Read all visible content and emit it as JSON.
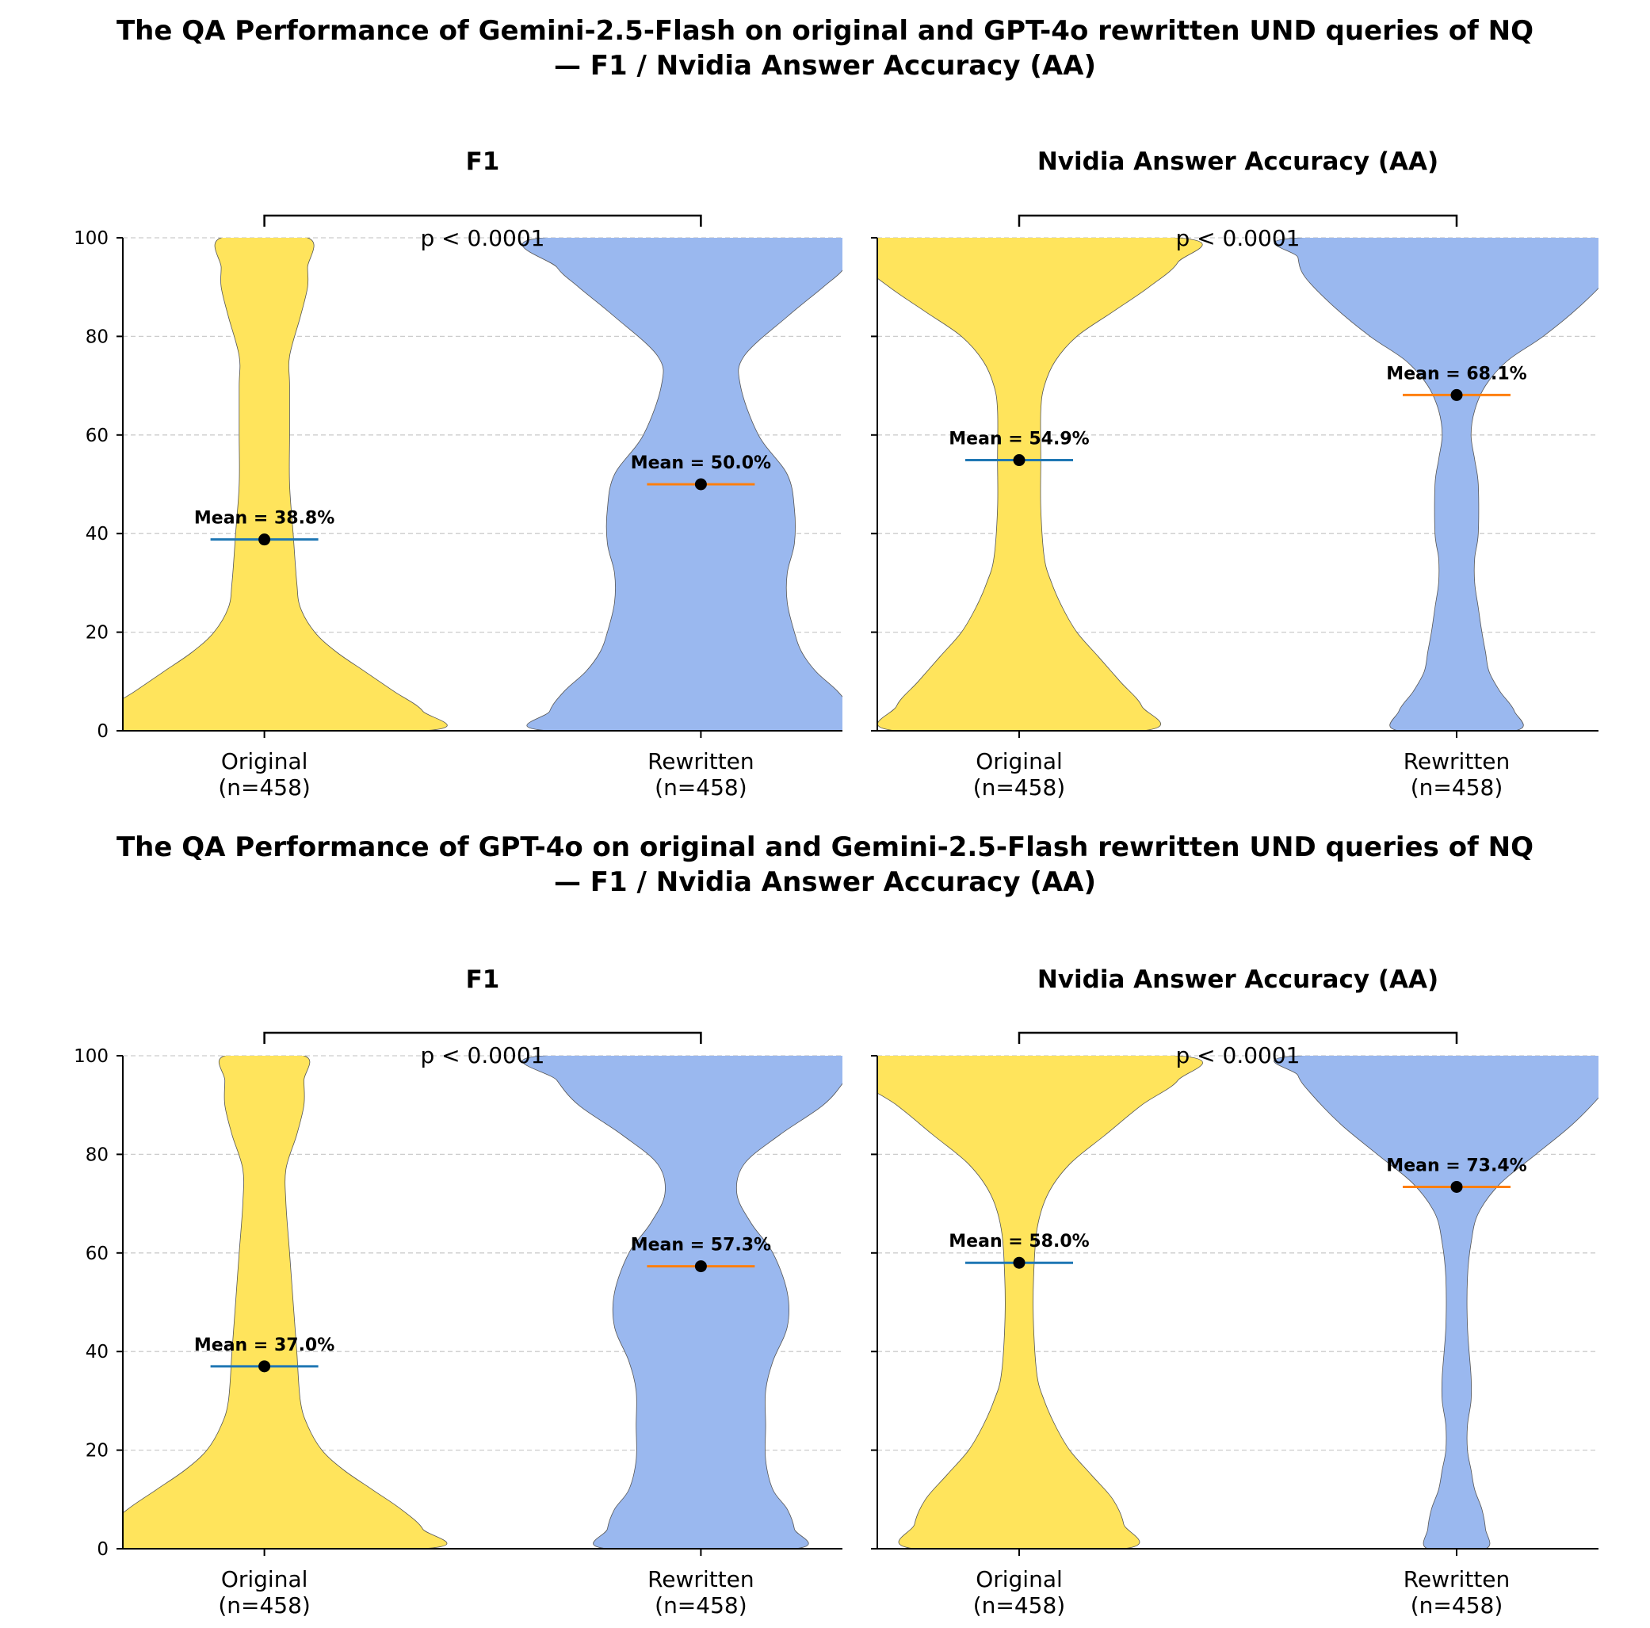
{
  "figure_titles": [
    {
      "line1": "The QA Performance of Gemini-2.5-Flash on original and GPT-4o rewritten UND queries of NQ",
      "line2": "— F1 / Nvidia Answer Accuracy (AA)"
    },
    {
      "line1": "The QA Performance of GPT-4o on original and Gemini-2.5-Flash rewritten UND queries of NQ",
      "line2": "— F1 / Nvidia Answer Accuracy (AA)"
    }
  ],
  "colors": {
    "original_fill": "#FFE45C",
    "rewritten_fill": "#9AB8EF",
    "original_mean_line": "#1F77B4",
    "rewritten_mean_line": "#FF7F0E",
    "mean_dot": "#000000",
    "grid": "#CCCCCC"
  },
  "chart_data": [
    {
      "type": "violin",
      "title": "F1",
      "ylim": [
        0,
        100
      ],
      "yticks": [
        0,
        20,
        40,
        60,
        80,
        100
      ],
      "grid": true,
      "categories": [
        "Original",
        "Rewritten"
      ],
      "category_counts": [
        "(n=458)",
        "(n=458)"
      ],
      "means": [
        38.8,
        50.0
      ],
      "mean_labels": [
        "Mean = 38.8%",
        "Mean = 50.0%"
      ],
      "significance": "p < 0.0001",
      "violin_halfwidths": [
        [
          [
            0,
            22
          ],
          [
            4,
            22
          ],
          [
            8,
            18
          ],
          [
            12,
            14
          ],
          [
            16,
            10
          ],
          [
            20,
            7
          ],
          [
            25,
            5
          ],
          [
            30,
            4.5
          ],
          [
            40,
            4
          ],
          [
            50,
            3.5
          ],
          [
            60,
            3.5
          ],
          [
            70,
            3.5
          ],
          [
            76,
            3.5
          ],
          [
            84,
            5
          ],
          [
            90,
            6
          ],
          [
            94,
            6
          ],
          [
            100,
            6
          ]
        ],
        [
          [
            0,
            21
          ],
          [
            4,
            21
          ],
          [
            8,
            19
          ],
          [
            12,
            16
          ],
          [
            16,
            14
          ],
          [
            20,
            13
          ],
          [
            26,
            12
          ],
          [
            32,
            12
          ],
          [
            38,
            13
          ],
          [
            45,
            13
          ],
          [
            52,
            12
          ],
          [
            60,
            8
          ],
          [
            70,
            5.5
          ],
          [
            76,
            6
          ],
          [
            84,
            12
          ],
          [
            90,
            17
          ],
          [
            94,
            20
          ],
          [
            100,
            22
          ]
        ]
      ]
    },
    {
      "type": "violin",
      "title": "Nvidia Answer Accuracy (AA)",
      "ylim": [
        0,
        100
      ],
      "yticks": [
        0,
        20,
        40,
        60,
        80,
        100
      ],
      "grid": true,
      "categories": [
        "Original",
        "Rewritten"
      ],
      "category_counts": [
        "(n=458)",
        "(n=458)"
      ],
      "means": [
        54.9,
        68.1
      ],
      "mean_labels": [
        "Mean = 54.9%",
        "Mean = 68.1%"
      ],
      "significance": "p < 0.0001",
      "violin_halfwidths": [
        [
          [
            0,
            17
          ],
          [
            5,
            17
          ],
          [
            10,
            14
          ],
          [
            15,
            11
          ],
          [
            20,
            8
          ],
          [
            25,
            6
          ],
          [
            30,
            4.5
          ],
          [
            35,
            3.5
          ],
          [
            45,
            3
          ],
          [
            55,
            3
          ],
          [
            65,
            3
          ],
          [
            70,
            3.5
          ],
          [
            75,
            5
          ],
          [
            80,
            8
          ],
          [
            85,
            13
          ],
          [
            90,
            18
          ],
          [
            95,
            22
          ],
          [
            100,
            22
          ]
        ],
        [
          [
            0,
            8
          ],
          [
            4,
            8
          ],
          [
            8,
            6
          ],
          [
            12,
            4.5
          ],
          [
            16,
            4
          ],
          [
            20,
            3.5
          ],
          [
            25,
            3
          ],
          [
            30,
            2.5
          ],
          [
            35,
            2.5
          ],
          [
            40,
            3
          ],
          [
            50,
            3
          ],
          [
            55,
            2.5
          ],
          [
            60,
            2
          ],
          [
            65,
            2.5
          ],
          [
            70,
            4
          ],
          [
            75,
            7
          ],
          [
            80,
            12
          ],
          [
            86,
            17
          ],
          [
            92,
            21
          ],
          [
            96,
            22
          ],
          [
            100,
            22
          ]
        ]
      ]
    },
    {
      "type": "violin",
      "title": "F1",
      "ylim": [
        0,
        100
      ],
      "yticks": [
        0,
        20,
        40,
        60,
        80,
        100
      ],
      "grid": true,
      "categories": [
        "Original",
        "Rewritten"
      ],
      "category_counts": [
        "(n=458)",
        "(n=458)"
      ],
      "means": [
        37.0,
        57.3
      ],
      "mean_labels": [
        "Mean = 37.0%",
        "Mean = 57.3%"
      ],
      "significance": "p < 0.0001",
      "violin_halfwidths": [
        [
          [
            0,
            22
          ],
          [
            4,
            22
          ],
          [
            8,
            19
          ],
          [
            12,
            15
          ],
          [
            16,
            11
          ],
          [
            20,
            8
          ],
          [
            25,
            6
          ],
          [
            30,
            5
          ],
          [
            40,
            4.5
          ],
          [
            50,
            4
          ],
          [
            60,
            3.5
          ],
          [
            70,
            3
          ],
          [
            77,
            3
          ],
          [
            84,
            4.5
          ],
          [
            90,
            5.5
          ],
          [
            95,
            5.5
          ],
          [
            100,
            5.5
          ]
        ],
        [
          [
            0,
            13
          ],
          [
            4,
            13
          ],
          [
            8,
            12
          ],
          [
            12,
            10
          ],
          [
            18,
            9
          ],
          [
            25,
            9
          ],
          [
            32,
            9
          ],
          [
            38,
            10
          ],
          [
            45,
            12
          ],
          [
            52,
            12
          ],
          [
            60,
            10
          ],
          [
            66,
            7
          ],
          [
            72,
            5
          ],
          [
            78,
            6
          ],
          [
            84,
            11
          ],
          [
            90,
            17
          ],
          [
            95,
            20
          ],
          [
            100,
            22
          ]
        ]
      ]
    },
    {
      "type": "violin",
      "title": "Nvidia Answer Accuracy (AA)",
      "ylim": [
        0,
        100
      ],
      "yticks": [
        0,
        20,
        40,
        60,
        80,
        100
      ],
      "grid": true,
      "categories": [
        "Original",
        "Rewritten"
      ],
      "category_counts": [
        "(n=458)",
        "(n=458)"
      ],
      "means": [
        58.0,
        73.4
      ],
      "mean_labels": [
        "Mean = 58.0%",
        "Mean = 73.4%"
      ],
      "significance": "p < 0.0001",
      "violin_halfwidths": [
        [
          [
            0,
            14.5
          ],
          [
            5,
            14.5
          ],
          [
            10,
            13
          ],
          [
            15,
            10
          ],
          [
            20,
            7
          ],
          [
            25,
            5
          ],
          [
            30,
            3.5
          ],
          [
            35,
            2.5
          ],
          [
            45,
            2
          ],
          [
            55,
            2
          ],
          [
            65,
            2.5
          ],
          [
            72,
            4
          ],
          [
            78,
            7
          ],
          [
            84,
            12
          ],
          [
            90,
            17
          ],
          [
            95,
            22
          ],
          [
            100,
            22
          ]
        ],
        [
          [
            0,
            4
          ],
          [
            4,
            4
          ],
          [
            8,
            3.5
          ],
          [
            12,
            2.5
          ],
          [
            16,
            2
          ],
          [
            20,
            1.5
          ],
          [
            25,
            1.5
          ],
          [
            30,
            2
          ],
          [
            35,
            2
          ],
          [
            45,
            1.5
          ],
          [
            55,
            1.5
          ],
          [
            62,
            2
          ],
          [
            68,
            3
          ],
          [
            74,
            6
          ],
          [
            80,
            11
          ],
          [
            86,
            16
          ],
          [
            92,
            20
          ],
          [
            96,
            22
          ],
          [
            100,
            22
          ]
        ]
      ]
    }
  ]
}
